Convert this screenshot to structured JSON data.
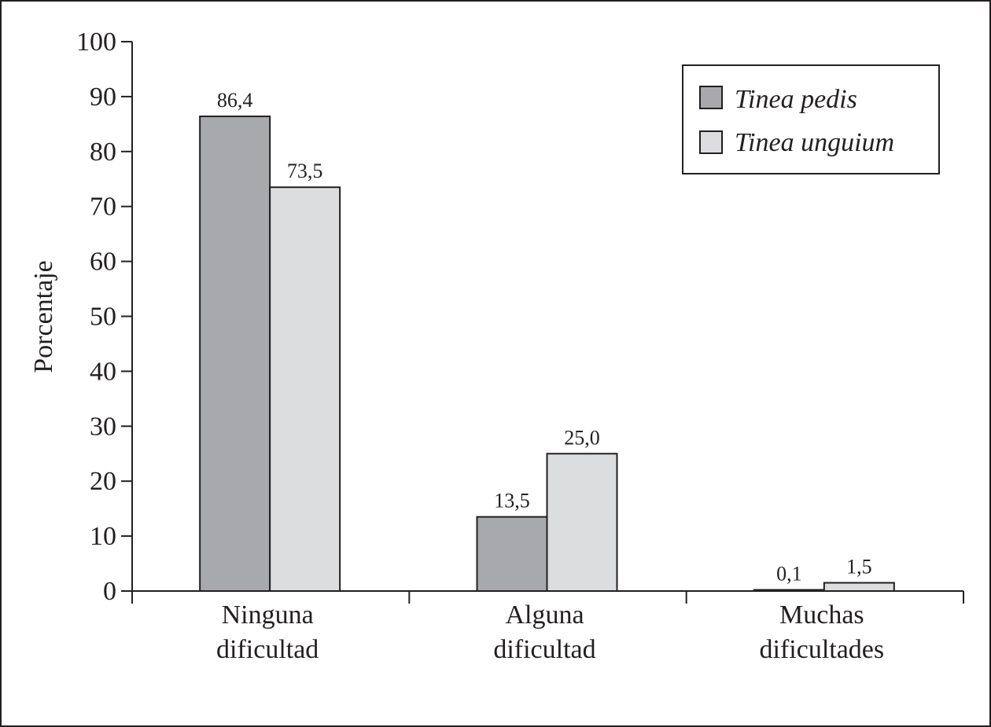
{
  "chart_data": {
    "type": "bar",
    "categories": [
      [
        "Ninguna",
        "dificultad"
      ],
      [
        "Alguna",
        "dificultad"
      ],
      [
        "Muchas",
        "dificultades"
      ]
    ],
    "series": [
      {
        "name": "Tinea pedis",
        "values": [
          86.4,
          13.5,
          0.1
        ],
        "labels": [
          "86,4",
          "13,5",
          "0,1"
        ],
        "color": "#a7a9ac"
      },
      {
        "name": "Tinea unguium",
        "values": [
          73.5,
          25.0,
          1.5
        ],
        "labels": [
          "73,5",
          "25,0",
          "1,5"
        ],
        "color": "#dcdddf"
      }
    ],
    "xlabel": "",
    "ylabel": "Porcentaje",
    "ylim": [
      0,
      100
    ],
    "yticks": [
      "0",
      "10",
      "20",
      "30",
      "40",
      "50",
      "60",
      "70",
      "80",
      "90",
      "100"
    ],
    "grid": false,
    "legend_position": "top-right",
    "stroke_color": "#231f20"
  }
}
